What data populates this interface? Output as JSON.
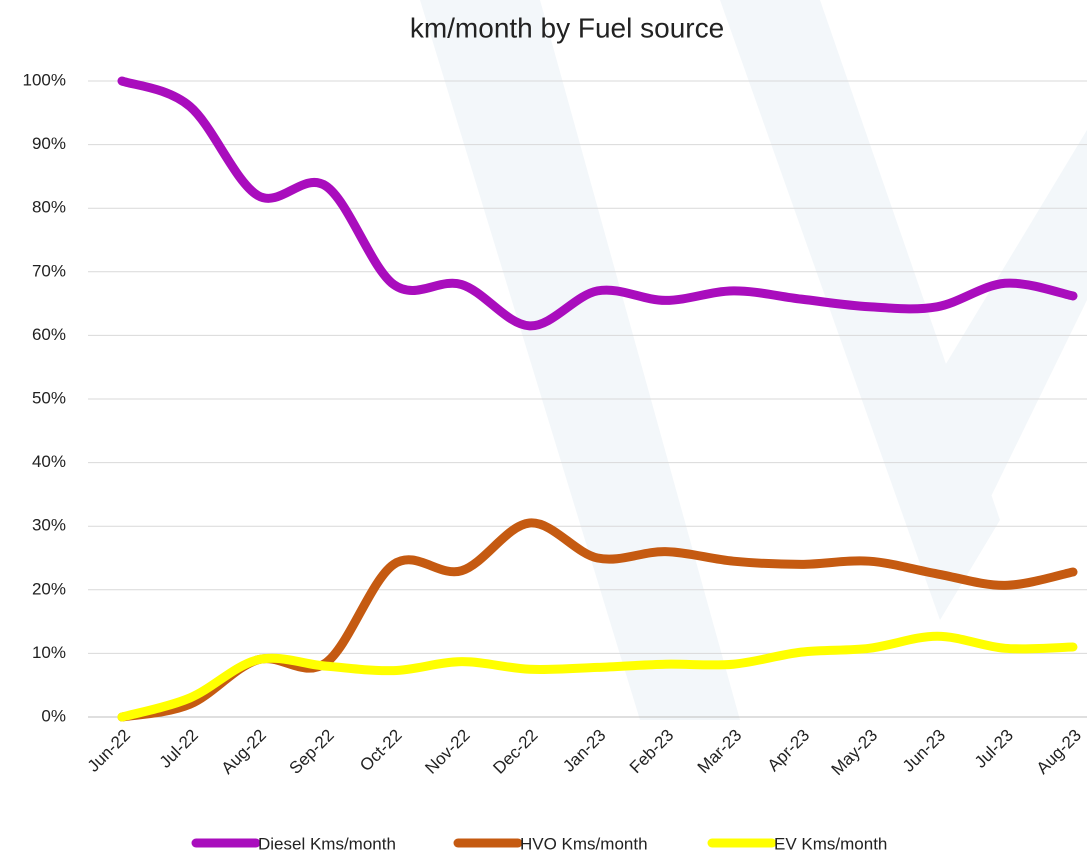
{
  "chart_data": {
    "type": "line",
    "title": "km/month by Fuel source",
    "categories": [
      "Jun-22",
      "Jul-22",
      "Aug-22",
      "Sep-22",
      "Oct-22",
      "Nov-22",
      "Dec-22",
      "Jan-23",
      "Feb-23",
      "Mar-23",
      "Apr-23",
      "May-23",
      "Jun-23",
      "Jul-23",
      "Aug-23"
    ],
    "series": [
      {
        "name": "Diesel Kms/month",
        "color": "#a90dbd",
        "values": [
          100,
          96,
          82,
          83.5,
          68,
          68,
          61.5,
          67,
          65.5,
          67,
          65.7,
          64.5,
          64.5,
          68.2,
          66.2
        ]
      },
      {
        "name": "HVO Kms/month",
        "color": "#c55a11",
        "values": [
          0,
          2,
          9,
          8.5,
          24,
          23,
          30.5,
          25,
          26,
          24.5,
          24,
          24.5,
          22.5,
          20.7,
          22.8
        ]
      },
      {
        "name": "EV Kms/month",
        "color": "#ffff00",
        "values": [
          0,
          3,
          9,
          8,
          7.3,
          8.7,
          7.5,
          7.8,
          8.3,
          8.3,
          10.2,
          10.8,
          12.7,
          10.8,
          11
        ]
      }
    ],
    "ylim": [
      0,
      100
    ],
    "yticks": [
      {
        "value": 0,
        "label": "0%"
      },
      {
        "value": 10,
        "label": "10%"
      },
      {
        "value": 20,
        "label": "20%"
      },
      {
        "value": 30,
        "label": "30%"
      },
      {
        "value": 40,
        "label": "40%"
      },
      {
        "value": 50,
        "label": "50%"
      },
      {
        "value": 60,
        "label": "60%"
      },
      {
        "value": 70,
        "label": "70%"
      },
      {
        "value": 80,
        "label": "80%"
      },
      {
        "value": 90,
        "label": "90%"
      },
      {
        "value": 100,
        "label": "100%"
      }
    ],
    "grid": true,
    "legend": "bottom"
  }
}
